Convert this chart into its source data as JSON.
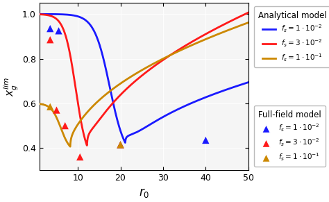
{
  "xlabel": "$r_0$",
  "ylabel": "$x_g^{lim}$",
  "xlim": [
    1,
    50
  ],
  "ylim": [
    0.3,
    1.05
  ],
  "yticks": [
    0.4,
    0.6,
    0.8,
    1.0
  ],
  "xticks": [
    10,
    20,
    30,
    40,
    50
  ],
  "line_colors": [
    "#1a1aff",
    "#ff1a1a",
    "#cc8800"
  ],
  "scatter_blue": {
    "r0": [
      3.5,
      5.5,
      20,
      40
    ],
    "y": [
      0.935,
      0.925,
      0.415,
      0.435
    ]
  },
  "scatter_red": {
    "r0": [
      3.5,
      5.0,
      7.0,
      10.5,
      20
    ],
    "y": [
      0.885,
      0.57,
      0.5,
      0.36,
      0.415
    ]
  },
  "scatter_orange": {
    "r0": [
      3.5,
      20
    ],
    "y": [
      0.585,
      0.415
    ]
  },
  "plot_bg_color": "#f5f5f5",
  "legend1_title": "Analytical model",
  "legend2_title": "Full-field model",
  "legend_labels": [
    "$f_s = 1 \\cdot 10^{-2}$",
    "$f_s = 3 \\cdot 10^{-2}$",
    "$f_s = 1 \\cdot 10^{-1}$"
  ],
  "blue_params": {
    "high": 1.0,
    "low": 0.345,
    "mid": 17.5,
    "steep": 0.55,
    "rise": 0.065,
    "rise_exp": 0.5
  },
  "red_params": {
    "high": 1.0,
    "low": 0.33,
    "mid": 9.5,
    "steep": 0.75,
    "rise": 0.11,
    "rise_exp": 0.5
  },
  "orange_params": {
    "high": 0.6,
    "low": 0.38,
    "mid": 6.0,
    "steep": 0.9,
    "rise": 0.09,
    "rise_exp": 0.5
  }
}
